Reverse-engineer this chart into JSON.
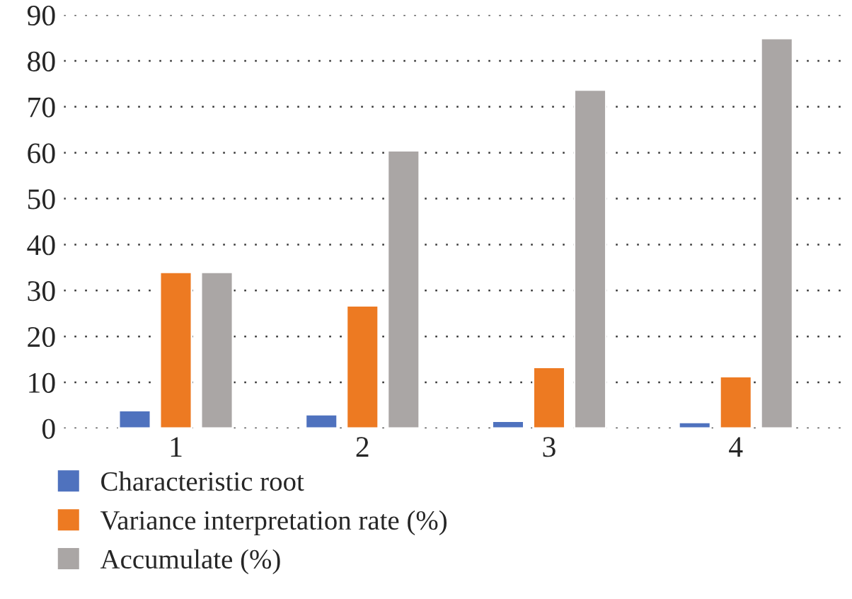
{
  "chart_data": {
    "type": "bar",
    "categories": [
      "1",
      "2",
      "3",
      "4"
    ],
    "series": [
      {
        "name": "Characteristic root",
        "color": "#4f72be",
        "values": [
          3.9,
          3.0,
          1.6,
          1.3
        ]
      },
      {
        "name": "Variance interpretation rate (%)",
        "color": "#ed7a22",
        "values": [
          34.0,
          26.7,
          13.3,
          11.3
        ]
      },
      {
        "name": "Accumulate (%)",
        "color": "#aaa6a5",
        "values": [
          34.0,
          60.5,
          73.7,
          84.9
        ]
      }
    ],
    "ylim": [
      0,
      90
    ],
    "yticks": [
      0,
      10,
      20,
      30,
      40,
      50,
      60,
      70,
      80,
      90
    ],
    "grid": "y",
    "legend": "bottom"
  }
}
